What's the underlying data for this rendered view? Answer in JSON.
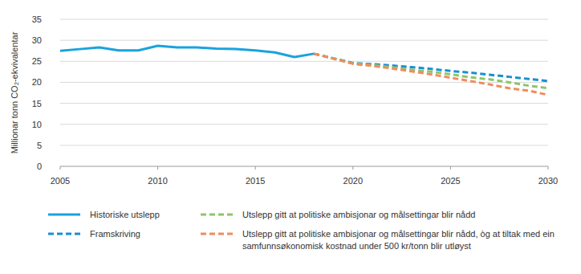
{
  "chart_data": {
    "type": "line",
    "y_label": "Millionar tonn CO₂-ekvivalentar",
    "x": [
      2005,
      2006,
      2007,
      2008,
      2009,
      2010,
      2011,
      2012,
      2013,
      2014,
      2015,
      2016,
      2017,
      2018,
      2019,
      2020,
      2021,
      2022,
      2023,
      2024,
      2025,
      2026,
      2027,
      2028,
      2029,
      2030
    ],
    "series": [
      {
        "name": "Historiske utslepp",
        "color": "#1aa3de",
        "line_style": "solid",
        "values": [
          27.5,
          27.9,
          28.3,
          27.6,
          27.6,
          28.7,
          28.3,
          28.3,
          28.0,
          27.9,
          27.6,
          27.1,
          26.0,
          26.8,
          null,
          null,
          null,
          null,
          null,
          null,
          null,
          null,
          null,
          null,
          null,
          null
        ]
      },
      {
        "name": "Framskriving",
        "color": "#1a8fd0",
        "line_style": "dashed",
        "values": [
          null,
          null,
          null,
          null,
          null,
          null,
          null,
          null,
          null,
          null,
          null,
          null,
          null,
          26.8,
          25.7,
          24.6,
          24.3,
          24.0,
          23.6,
          23.2,
          22.7,
          22.3,
          21.8,
          21.3,
          20.8,
          20.3
        ]
      },
      {
        "name": "Utslepp gitt at politiske ambisjonar og målsettingar blir nådd",
        "color": "#8dc667",
        "line_style": "dashed",
        "values": [
          null,
          null,
          null,
          null,
          null,
          null,
          null,
          null,
          null,
          null,
          null,
          null,
          null,
          26.8,
          25.7,
          24.5,
          24.1,
          23.6,
          23.0,
          22.5,
          21.9,
          21.2,
          20.7,
          20.0,
          19.2,
          18.6
        ]
      },
      {
        "name": "Utslepp gitt at politiske ambisjonar og målsettingar blir nådd, òg at tiltak med ein samfunnsøkonomisk kostnad under 500 kr/tonn blir utløyst",
        "color": "#f08c5e",
        "line_style": "dashed",
        "values": [
          null,
          null,
          null,
          null,
          null,
          null,
          null,
          null,
          null,
          null,
          null,
          null,
          null,
          26.8,
          25.6,
          24.4,
          23.9,
          23.3,
          22.6,
          21.9,
          21.1,
          20.3,
          19.5,
          18.6,
          18.0,
          17.0
        ]
      }
    ],
    "xlim": [
      2005,
      2030
    ],
    "ylim": [
      0,
      35
    ],
    "xticks": [
      2005,
      2010,
      2015,
      2020,
      2025,
      2030
    ],
    "yticks": [
      0,
      5,
      10,
      15,
      20,
      25,
      30,
      35
    ],
    "grid": true,
    "legend": "bottom"
  }
}
